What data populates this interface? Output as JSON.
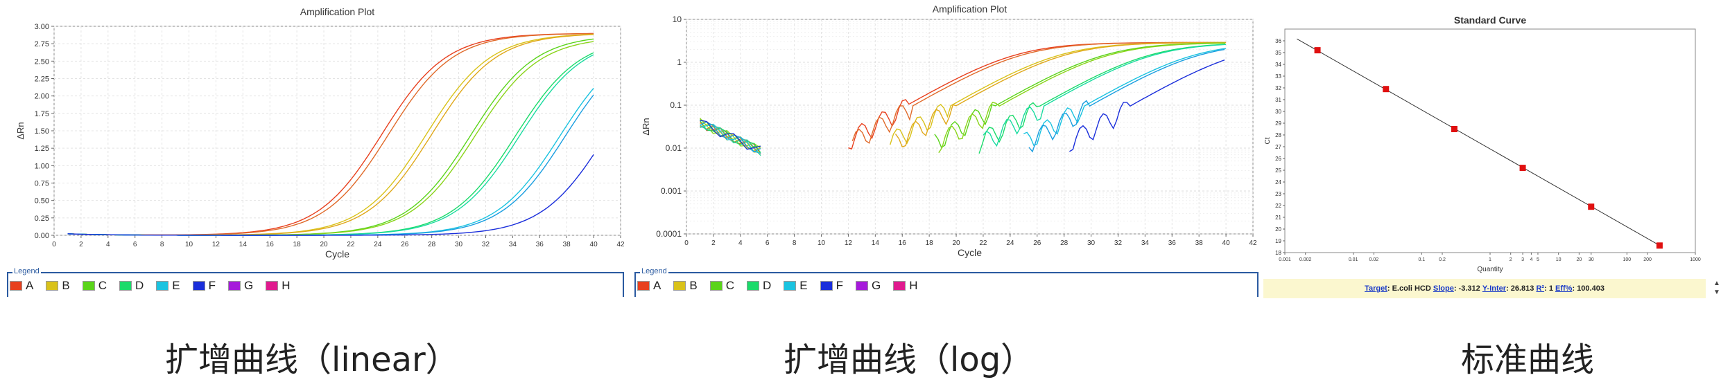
{
  "captions": [
    "扩增曲线（linear）",
    "扩增曲线（log）",
    "标准曲线"
  ],
  "legend": {
    "title": "Legend",
    "items": [
      {
        "label": "A",
        "color": "#e8401e"
      },
      {
        "label": "B",
        "color": "#d9c21a"
      },
      {
        "label": "C",
        "color": "#5ad41a"
      },
      {
        "label": "D",
        "color": "#1adb6a"
      },
      {
        "label": "E",
        "color": "#1ac3e0"
      },
      {
        "label": "F",
        "color": "#1a2edb"
      },
      {
        "label": "G",
        "color": "#a61adb"
      },
      {
        "label": "H",
        "color": "#e01a8e"
      }
    ]
  },
  "info_bar": {
    "target_label": "Target",
    "target_value": ": E.coli HCD",
    "slope_label": "Slope",
    "slope_value": ": -3.312",
    "yinter_label": "Y-Inter",
    "yinter_value": ": 26.813",
    "r2_label": "R²",
    "r2_value": ": 1",
    "eff_label": "Eff%",
    "eff_value": ": 100.403"
  },
  "chart_data": [
    {
      "type": "line",
      "title": "Amplification Plot",
      "xlabel": "Cycle",
      "ylabel": "ΔRn",
      "xlim": [
        0,
        42
      ],
      "ylim": [
        0,
        3.0
      ],
      "xticks": [
        0,
        2,
        4,
        6,
        8,
        10,
        12,
        14,
        16,
        18,
        20,
        22,
        24,
        26,
        28,
        30,
        32,
        34,
        36,
        38,
        40,
        42
      ],
      "yticks": [
        "0.00",
        "0.25",
        "0.50",
        "0.75",
        "1.00",
        "1.25",
        "1.50",
        "1.75",
        "2.00",
        "2.25",
        "2.50",
        "2.75",
        "3.00"
      ],
      "grid": true,
      "series": [
        {
          "color": "#e8401e",
          "ct": 20.3,
          "plateau": 2.9,
          "k": 0.42
        },
        {
          "color": "#e06a2a",
          "ct": 20.8,
          "plateau": 2.9,
          "k": 0.42
        },
        {
          "color": "#d9c21a",
          "ct": 23.6,
          "plateau": 2.9,
          "k": 0.42
        },
        {
          "color": "#e0a81a",
          "ct": 24.0,
          "plateau": 2.9,
          "k": 0.42
        },
        {
          "color": "#5ad41a",
          "ct": 26.9,
          "plateau": 2.88,
          "k": 0.42
        },
        {
          "color": "#8ad41a",
          "ct": 27.2,
          "plateau": 2.85,
          "k": 0.42
        },
        {
          "color": "#1adb6a",
          "ct": 30.2,
          "plateau": 2.85,
          "k": 0.42
        },
        {
          "color": "#1adba0",
          "ct": 30.5,
          "plateau": 2.85,
          "k": 0.42
        },
        {
          "color": "#1ac3e0",
          "ct": 33.5,
          "plateau": 2.85,
          "k": 0.42
        },
        {
          "color": "#1a9ee0",
          "ct": 33.9,
          "plateau": 2.85,
          "k": 0.42
        },
        {
          "color": "#1a2edb",
          "ct": 36.9,
          "plateau": 2.85,
          "k": 0.42
        }
      ]
    },
    {
      "type": "line",
      "title": "Amplification Plot",
      "xlabel": "Cycle",
      "ylabel": "ΔRn",
      "xlim": [
        0,
        42
      ],
      "ylim": [
        0.0001,
        10
      ],
      "yscale": "log",
      "xticks": [
        0,
        2,
        4,
        6,
        8,
        10,
        12,
        14,
        16,
        18,
        20,
        22,
        24,
        26,
        28,
        30,
        32,
        34,
        36,
        38,
        40,
        42
      ],
      "yticks": [
        "0.0001",
        "0.001",
        "0.01",
        "0.1",
        "1",
        "10"
      ],
      "grid": true
    },
    {
      "type": "scatter",
      "title": "Standard Curve",
      "xlabel": "Quantity",
      "ylabel": "Ct",
      "xscale": "log",
      "xlim": [
        0.001,
        1000
      ],
      "ylim": [
        18,
        37
      ],
      "xticks": [
        "0.001",
        "0.002",
        "0.01",
        "0.02",
        "0.1",
        "0.2",
        "1",
        "2",
        "3",
        "4",
        "5",
        "10",
        "20",
        "30",
        "100",
        "200",
        "1000"
      ],
      "yticks": [
        "18",
        "19",
        "20",
        "21",
        "22",
        "23",
        "24",
        "25",
        "26",
        "27",
        "28",
        "29",
        "30",
        "31",
        "32",
        "33",
        "34",
        "35",
        "36"
      ],
      "slope": -3.312,
      "intercept": 26.813,
      "points": [
        {
          "x": 0.003,
          "y": 35.2
        },
        {
          "x": 0.03,
          "y": 31.9
        },
        {
          "x": 0.3,
          "y": 28.5
        },
        {
          "x": 3,
          "y": 25.2
        },
        {
          "x": 30,
          "y": 21.9
        },
        {
          "x": 300,
          "y": 18.6
        }
      ]
    }
  ]
}
